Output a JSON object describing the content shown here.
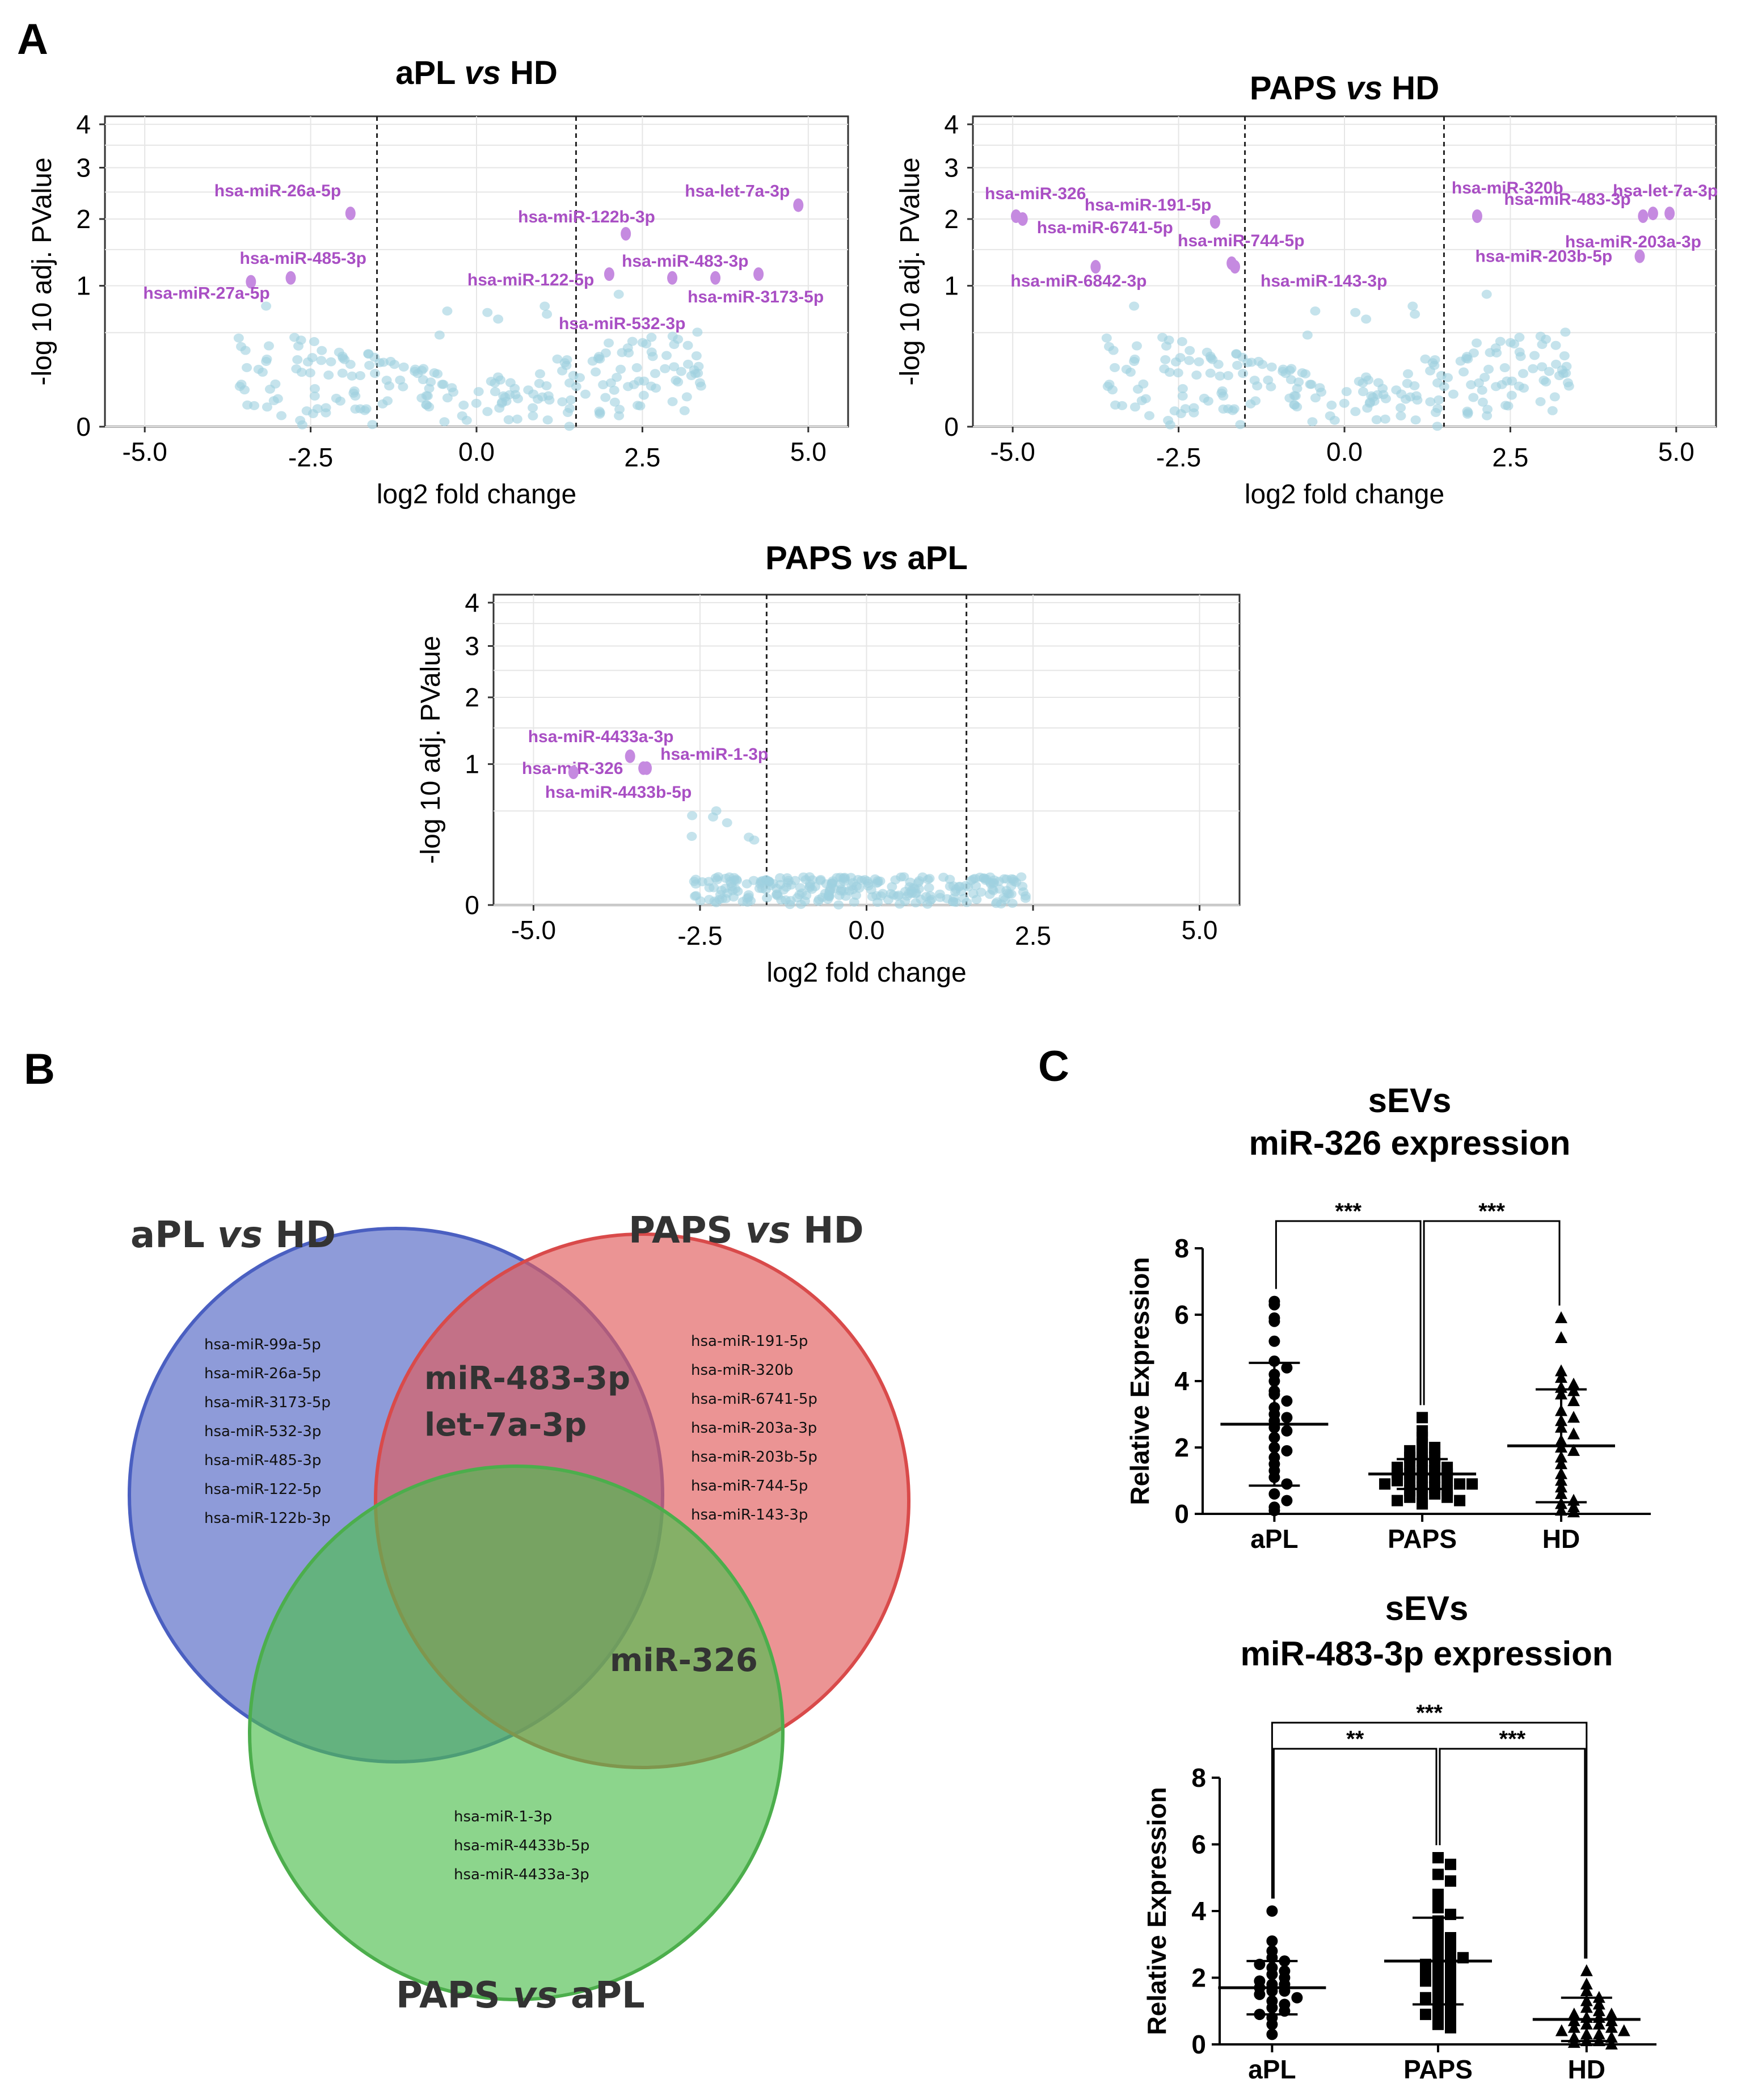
{
  "panels": {
    "a": "A",
    "b": "B",
    "c": "C"
  },
  "chart_data": [
    {
      "id": "volcano1",
      "type": "scatter",
      "title": "aPL vs HD",
      "title_parts": [
        "aPL ",
        "vs",
        " HD"
      ],
      "xlabel": "log2 fold change",
      "ylabel": "-log 10 adj. PValue",
      "xlim": [
        -5.6,
        5.6
      ],
      "ylim": [
        -0.15,
        4.2
      ],
      "xticks": [
        -5.0,
        -2.5,
        0.0,
        2.5,
        5.0
      ],
      "xtick_labels": [
        "-5.0",
        "-2.5",
        "0.0",
        "2.5",
        "5.0"
      ],
      "yticks": [
        0,
        1,
        2,
        3,
        4
      ],
      "ytick_labels": [
        "0",
        "1",
        "2",
        "3",
        "4"
      ],
      "thresholds": [
        -1.5,
        1.5
      ],
      "significant": [
        {
          "x": -1.9,
          "y": 2.1,
          "label": "hsa-miR-26a-5p"
        },
        {
          "x": -2.8,
          "y": 1.1,
          "label": "hsa-miR-485-3p"
        },
        {
          "x": -3.4,
          "y": 1.05,
          "label": "hsa-miR-27a-5p"
        },
        {
          "x": 4.85,
          "y": 2.25,
          "label": "hsa-let-7a-3p"
        },
        {
          "x": 2.25,
          "y": 1.75,
          "label": "hsa-miR-122b-3p"
        },
        {
          "x": 3.6,
          "y": 1.1,
          "label": "hsa-miR-483-3p"
        },
        {
          "x": 2.0,
          "y": 1.15,
          "label": "hsa-miR-122-5p"
        },
        {
          "x": 4.25,
          "y": 1.15,
          "label": "hsa-miR-3173-5p"
        },
        {
          "x": 2.95,
          "y": 1.1,
          "label": "hsa-miR-532-3p"
        }
      ]
    },
    {
      "id": "volcano2",
      "type": "scatter",
      "title": "PAPS vs HD",
      "title_parts": [
        "PAPS ",
        "vs",
        " HD"
      ],
      "xlabel": "log2 fold change",
      "ylabel": "-log 10 adj. PValue",
      "xlim": [
        -5.6,
        5.6
      ],
      "ylim": [
        -0.15,
        4.2
      ],
      "xticks": [
        -5.0,
        -2.5,
        0.0,
        2.5,
        5.0
      ],
      "xtick_labels": [
        "-5.0",
        "-2.5",
        "0.0",
        "2.5",
        "5.0"
      ],
      "yticks": [
        0,
        1,
        2,
        3,
        4
      ],
      "ytick_labels": [
        "0",
        "1",
        "2",
        "3",
        "4"
      ],
      "thresholds": [
        -1.5,
        1.5
      ],
      "significant": [
        {
          "x": -4.95,
          "y": 2.05,
          "label": "hsa-miR-326"
        },
        {
          "x": -1.95,
          "y": 1.95,
          "label": "hsa-miR-191-5p"
        },
        {
          "x": -4.85,
          "y": 2.0,
          "label": "hsa-miR-6741-5p"
        },
        {
          "x": -1.7,
          "y": 1.3,
          "label": "hsa-miR-744-5p"
        },
        {
          "x": -3.75,
          "y": 1.25,
          "label": "hsa-miR-6842-3p"
        },
        {
          "x": -1.65,
          "y": 1.25,
          "label": "hsa-miR-143-3p"
        },
        {
          "x": 2.0,
          "y": 2.05,
          "label": "hsa-miR-320b"
        },
        {
          "x": 4.9,
          "y": 2.1,
          "label": "hsa-let-7a-3p"
        },
        {
          "x": 4.5,
          "y": 2.05,
          "label": "hsa-miR-483-3p"
        },
        {
          "x": 4.65,
          "y": 2.1,
          "label": "hsa-miR-203a-3p"
        },
        {
          "x": 4.45,
          "y": 1.4,
          "label": "hsa-miR-203b-5p"
        }
      ]
    },
    {
      "id": "volcano3",
      "type": "scatter",
      "title": "PAPS vs aPL",
      "title_parts": [
        "PAPS ",
        "vs",
        " aPL"
      ],
      "xlabel": "log2 fold change",
      "ylabel": "-log 10 adj. PValue",
      "xlim": [
        -5.6,
        5.6
      ],
      "ylim": [
        -0.15,
        4.2
      ],
      "xticks": [
        -5.0,
        -2.5,
        0.0,
        2.5,
        5.0
      ],
      "xtick_labels": [
        "-5.0",
        "-2.5",
        "0.0",
        "2.5",
        "5.0"
      ],
      "yticks": [
        0,
        1,
        2,
        3,
        4
      ],
      "ytick_labels": [
        "0",
        "1",
        "2",
        "3",
        "4"
      ],
      "thresholds": [
        -1.5,
        1.5
      ],
      "significant": [
        {
          "x": -3.55,
          "y": 1.1,
          "label": "hsa-miR-4433a-3p"
        },
        {
          "x": -3.3,
          "y": 0.95,
          "label": "hsa-miR-326"
        },
        {
          "x": -3.35,
          "y": 0.95,
          "label": "hsa-miR-1-3p"
        },
        {
          "x": -4.4,
          "y": 0.9,
          "label": "hsa-miR-4433b-5p"
        }
      ]
    },
    {
      "id": "dot1",
      "type": "scatter",
      "title_lines": [
        "sEVs",
        "miR-326 expression"
      ],
      "ylabel": "Relative Expression",
      "categories": [
        "aPL",
        "PAPS",
        "HD"
      ],
      "ylim": [
        0,
        8
      ],
      "yticks": [
        0,
        2,
        4,
        6,
        8
      ],
      "ytick_labels": [
        "0",
        "2",
        "4",
        "6",
        "8"
      ],
      "groups": [
        {
          "name": "aPL",
          "marker": "circle",
          "mean": 2.7,
          "sd": 1.85,
          "values": [
            6.4,
            6.3,
            5.9,
            5.8,
            5.2,
            4.6,
            4.4,
            4.2,
            4.0,
            3.7,
            3.6,
            3.4,
            3.2,
            3.0,
            2.9,
            2.8,
            2.6,
            2.5,
            2.3,
            2.0,
            1.9,
            1.7,
            1.5,
            1.3,
            1.1,
            0.9,
            0.6,
            0.4,
            0.2,
            0.1
          ]
        },
        {
          "name": "PAPS",
          "marker": "square",
          "mean": 1.2,
          "sd": 0.45,
          "values": [
            2.9,
            2.5,
            2.3,
            2.1,
            2.0,
            1.9,
            1.8,
            1.7,
            1.7,
            1.6,
            1.5,
            1.5,
            1.4,
            1.4,
            1.3,
            1.3,
            1.2,
            1.2,
            1.2,
            1.1,
            1.1,
            1.0,
            1.0,
            1.0,
            0.9,
            0.9,
            0.9,
            0.8,
            0.8,
            0.7,
            0.7,
            0.6,
            0.6,
            0.5,
            0.5,
            0.4,
            0.4,
            0.3
          ]
        },
        {
          "name": "HD",
          "marker": "triangle",
          "mean": 2.05,
          "sd": 1.7,
          "values": [
            5.9,
            5.3,
            4.3,
            4.1,
            3.9,
            3.8,
            3.7,
            3.6,
            3.4,
            3.1,
            2.9,
            2.8,
            2.6,
            2.4,
            2.2,
            2.0,
            1.9,
            1.7,
            1.5,
            1.2,
            1.0,
            0.8,
            0.6,
            0.4,
            0.3,
            0.2,
            0.1,
            0.05
          ]
        }
      ],
      "comparisons": [
        {
          "from": "aPL",
          "to": "PAPS",
          "label": "***"
        },
        {
          "from": "PAPS",
          "to": "HD",
          "label": "***"
        }
      ]
    },
    {
      "id": "dot2",
      "type": "scatter",
      "title_lines": [
        "sEVs",
        "miR-483-3p expression"
      ],
      "ylabel": "Relative Expression",
      "categories": [
        "aPL",
        "PAPS",
        "HD"
      ],
      "ylim": [
        0,
        8
      ],
      "yticks": [
        0,
        2,
        4,
        6,
        8
      ],
      "ytick_labels": [
        "0",
        "2",
        "4",
        "6",
        "8"
      ],
      "groups": [
        {
          "name": "aPL",
          "marker": "circle",
          "mean": 1.7,
          "sd": 0.8,
          "values": [
            4.0,
            3.1,
            2.8,
            2.6,
            2.5,
            2.4,
            2.3,
            2.2,
            2.1,
            2.0,
            1.9,
            1.8,
            1.8,
            1.7,
            1.6,
            1.6,
            1.5,
            1.4,
            1.3,
            1.2,
            1.1,
            1.0,
            0.9,
            0.8,
            0.6,
            0.3
          ]
        },
        {
          "name": "PAPS",
          "marker": "square",
          "mean": 2.5,
          "sd": 1.3,
          "values": [
            5.6,
            5.4,
            5.1,
            4.9,
            4.5,
            4.3,
            4.1,
            3.9,
            3.7,
            3.5,
            3.3,
            3.2,
            3.0,
            2.9,
            2.8,
            2.7,
            2.6,
            2.5,
            2.4,
            2.3,
            2.2,
            2.1,
            2.0,
            1.9,
            1.8,
            1.7,
            1.6,
            1.5,
            1.4,
            1.3,
            1.2,
            1.1,
            1.0,
            0.9,
            0.8,
            0.7,
            0.6,
            0.5,
            2.2,
            2.6
          ]
        },
        {
          "name": "HD",
          "marker": "triangle",
          "mean": 0.75,
          "sd": 0.65,
          "values": [
            2.2,
            1.8,
            1.6,
            1.4,
            1.3,
            1.2,
            1.1,
            1.0,
            0.9,
            0.9,
            0.8,
            0.8,
            0.7,
            0.7,
            0.6,
            0.6,
            0.5,
            0.5,
            0.4,
            0.4,
            0.3,
            0.3,
            0.2,
            0.2,
            0.1,
            0.1,
            0.05,
            0.0
          ]
        }
      ],
      "comparisons": [
        {
          "from": "aPL",
          "to": "PAPS",
          "label": "**"
        },
        {
          "from": "PAPS",
          "to": "HD",
          "label": "***"
        },
        {
          "from": "aPL",
          "to": "HD",
          "label": "***"
        }
      ]
    }
  ],
  "venn": {
    "sets": [
      {
        "name": "aPL vs HD",
        "title_parts": [
          "aPL ",
          "vs",
          " HD"
        ],
        "color": "#5266c4"
      },
      {
        "name": "PAPS vs HD",
        "title_parts": [
          "PAPS ",
          "vs",
          " HD"
        ],
        "color": "#e15a5a"
      },
      {
        "name": "PAPS vs aPL",
        "title_parts": [
          "PAPS ",
          "vs",
          " aPL"
        ],
        "color": "#4fbf4f"
      }
    ],
    "only_apl_hd": [
      "hsa-miR-99a-5p",
      "hsa-miR-26a-5p",
      "hsa-miR-3173-5p",
      "hsa-miR-532-3p",
      "hsa-miR-485-3p",
      "hsa-miR-122-5p",
      "hsa-miR-122b-3p"
    ],
    "only_paps_hd": [
      "hsa-miR-191-5p",
      "hsa-miR-320b",
      "hsa-miR-6741-5p",
      "hsa-miR-203a-3p",
      "hsa-miR-203b-5p",
      "hsa-miR-744-5p",
      "hsa-miR-143-3p"
    ],
    "only_paps_apl": [
      "hsa-miR-1-3p",
      "hsa-miR-4433b-5p",
      "hsa-miR-4433a-3p"
    ],
    "apl_hd_and_paps_hd": [
      "miR-483-3p",
      "let-7a-3p"
    ],
    "paps_hd_and_paps_apl": [
      "miR-326"
    ]
  },
  "colors": {
    "background_point": "#9fd0e0",
    "significant_point": "#c58ae0",
    "mir_label": "#a94fc4"
  }
}
